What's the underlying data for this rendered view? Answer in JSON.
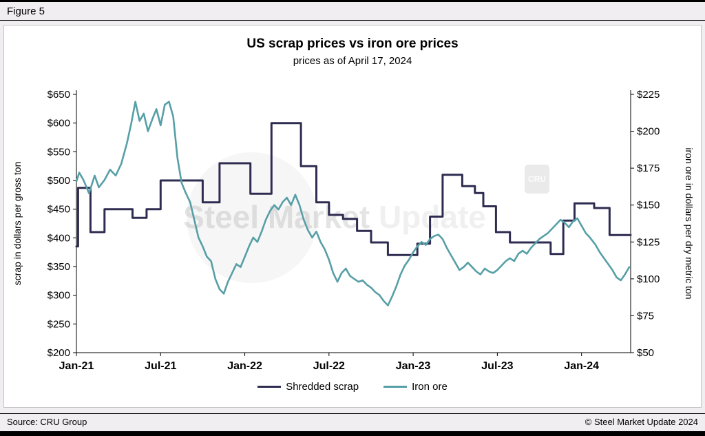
{
  "figure": {
    "label": "Figure 5"
  },
  "footer": {
    "source": "Source: CRU Group",
    "copyright": "© Steel Market Update 2024"
  },
  "watermark": {
    "text": "Steel Market Update",
    "logo": "CRU"
  },
  "chart_data": {
    "type": "line",
    "title": "US scrap prices vs iron ore prices",
    "subtitle": "prices as of April 17, 2024",
    "x_axis": {
      "unit": "months since Jan-2021",
      "range_months": [
        0,
        39.5
      ],
      "ticks": [
        {
          "label": "Jan-21",
          "m": 0
        },
        {
          "label": "Jul-21",
          "m": 6
        },
        {
          "label": "Jan-22",
          "m": 12
        },
        {
          "label": "Jul-22",
          "m": 18
        },
        {
          "label": "Jan-23",
          "m": 24
        },
        {
          "label": "Jul-23",
          "m": 30
        },
        {
          "label": "Jan-24",
          "m": 36
        }
      ]
    },
    "left_axis": {
      "label": "scrap in dollars per gross ton",
      "min": 200,
      "max": 650,
      "step": 50,
      "tick_labels": [
        "$200",
        "$250",
        "$300",
        "$350",
        "$400",
        "$450",
        "$500",
        "$550",
        "$600",
        "$650"
      ]
    },
    "right_axis": {
      "label": "iron ore in dollars per dry metric ton",
      "min": 50,
      "max": 225,
      "step": 25,
      "tick_labels": [
        "$50",
        "$75",
        "$100",
        "$125",
        "$150",
        "$175",
        "$200",
        "$225"
      ]
    },
    "series": [
      {
        "name": "Shredded scrap",
        "axis": "left",
        "style": "step",
        "color": "#2e2c50",
        "points": [
          [
            0,
            385
          ],
          [
            0.12,
            487
          ],
          [
            1,
            410
          ],
          [
            2,
            450
          ],
          [
            3,
            450
          ],
          [
            4,
            435
          ],
          [
            5,
            450
          ],
          [
            6,
            500
          ],
          [
            7,
            500
          ],
          [
            8,
            500
          ],
          [
            9,
            462
          ],
          [
            10.2,
            530
          ],
          [
            12.4,
            477
          ],
          [
            13.9,
            600
          ],
          [
            16,
            525
          ],
          [
            17.1,
            462
          ],
          [
            18,
            440
          ],
          [
            19,
            433
          ],
          [
            20,
            412
          ],
          [
            21,
            392
          ],
          [
            22.2,
            370
          ],
          [
            24.3,
            390
          ],
          [
            25.2,
            437
          ],
          [
            26.1,
            510
          ],
          [
            27.5,
            490
          ],
          [
            28.4,
            478
          ],
          [
            29,
            455
          ],
          [
            29.9,
            410
          ],
          [
            30.9,
            392
          ],
          [
            33.8,
            372
          ],
          [
            34.7,
            430
          ],
          [
            35.5,
            460
          ],
          [
            36.9,
            452
          ],
          [
            38,
            405
          ],
          [
            39.5,
            405
          ]
        ]
      },
      {
        "name": "Iron ore",
        "axis": "right",
        "style": "line",
        "color": "#569FA6",
        "points": [
          [
            0,
            166
          ],
          [
            0.2,
            172
          ],
          [
            0.5,
            167
          ],
          [
            0.9,
            158
          ],
          [
            1.3,
            170
          ],
          [
            1.6,
            162
          ],
          [
            2.0,
            167
          ],
          [
            2.4,
            174
          ],
          [
            2.8,
            170
          ],
          [
            3.2,
            178
          ],
          [
            3.6,
            192
          ],
          [
            3.9,
            205
          ],
          [
            4.2,
            220
          ],
          [
            4.5,
            207
          ],
          [
            4.8,
            212
          ],
          [
            5.1,
            200
          ],
          [
            5.4,
            208
          ],
          [
            5.7,
            215
          ],
          [
            6.0,
            204
          ],
          [
            6.3,
            218
          ],
          [
            6.6,
            220
          ],
          [
            6.9,
            210
          ],
          [
            7.2,
            182
          ],
          [
            7.5,
            165
          ],
          [
            7.8,
            158
          ],
          [
            8.1,
            152
          ],
          [
            8.4,
            140
          ],
          [
            8.7,
            128
          ],
          [
            9.0,
            122
          ],
          [
            9.3,
            115
          ],
          [
            9.6,
            112
          ],
          [
            9.9,
            100
          ],
          [
            10.2,
            93
          ],
          [
            10.5,
            90
          ],
          [
            10.8,
            98
          ],
          [
            11.1,
            104
          ],
          [
            11.4,
            110
          ],
          [
            11.7,
            108
          ],
          [
            12.0,
            115
          ],
          [
            12.3,
            122
          ],
          [
            12.6,
            128
          ],
          [
            12.9,
            125
          ],
          [
            13.2,
            132
          ],
          [
            13.5,
            140
          ],
          [
            13.8,
            146
          ],
          [
            14.1,
            150
          ],
          [
            14.4,
            147
          ],
          [
            14.7,
            152
          ],
          [
            15.0,
            155
          ],
          [
            15.3,
            150
          ],
          [
            15.6,
            157
          ],
          [
            15.9,
            150
          ],
          [
            16.2,
            140
          ],
          [
            16.5,
            133
          ],
          [
            16.8,
            128
          ],
          [
            17.1,
            132
          ],
          [
            17.4,
            125
          ],
          [
            17.7,
            120
          ],
          [
            18.0,
            113
          ],
          [
            18.3,
            104
          ],
          [
            18.6,
            98
          ],
          [
            18.9,
            104
          ],
          [
            19.2,
            107
          ],
          [
            19.5,
            102
          ],
          [
            19.8,
            100
          ],
          [
            20.1,
            98
          ],
          [
            20.4,
            99
          ],
          [
            20.7,
            96
          ],
          [
            21.0,
            94
          ],
          [
            21.3,
            91
          ],
          [
            21.6,
            89
          ],
          [
            21.9,
            85
          ],
          [
            22.2,
            82
          ],
          [
            22.5,
            88
          ],
          [
            22.8,
            95
          ],
          [
            23.1,
            103
          ],
          [
            23.4,
            109
          ],
          [
            23.7,
            113
          ],
          [
            24.0,
            118
          ],
          [
            24.3,
            122
          ],
          [
            24.6,
            125
          ],
          [
            24.9,
            123
          ],
          [
            25.2,
            127
          ],
          [
            25.5,
            129
          ],
          [
            25.8,
            130
          ],
          [
            26.1,
            127
          ],
          [
            26.4,
            121
          ],
          [
            26.7,
            116
          ],
          [
            27.0,
            111
          ],
          [
            27.3,
            106
          ],
          [
            27.6,
            108
          ],
          [
            27.9,
            111
          ],
          [
            28.2,
            108
          ],
          [
            28.5,
            105
          ],
          [
            28.8,
            103
          ],
          [
            29.1,
            107
          ],
          [
            29.4,
            105
          ],
          [
            29.7,
            104
          ],
          [
            30.0,
            106
          ],
          [
            30.3,
            109
          ],
          [
            30.6,
            112
          ],
          [
            30.9,
            114
          ],
          [
            31.2,
            112
          ],
          [
            31.5,
            117
          ],
          [
            31.8,
            119
          ],
          [
            32.1,
            117
          ],
          [
            32.4,
            121
          ],
          [
            32.7,
            124
          ],
          [
            33.0,
            127
          ],
          [
            33.3,
            129
          ],
          [
            33.6,
            131
          ],
          [
            33.9,
            134
          ],
          [
            34.2,
            137
          ],
          [
            34.5,
            140
          ],
          [
            34.8,
            138
          ],
          [
            35.1,
            135
          ],
          [
            35.4,
            139
          ],
          [
            35.7,
            141
          ],
          [
            36.0,
            136
          ],
          [
            36.3,
            131
          ],
          [
            36.6,
            128
          ],
          [
            37.0,
            123
          ],
          [
            37.3,
            118
          ],
          [
            37.6,
            114
          ],
          [
            37.9,
            110
          ],
          [
            38.2,
            106
          ],
          [
            38.5,
            101
          ],
          [
            38.8,
            99
          ],
          [
            39.1,
            103
          ],
          [
            39.4,
            108
          ]
        ]
      }
    ],
    "legend_position": "bottom",
    "grid": false
  }
}
